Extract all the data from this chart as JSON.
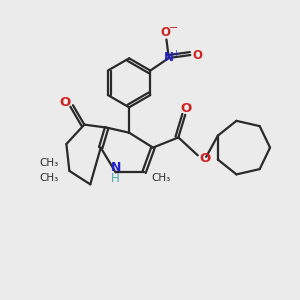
{
  "bg_color": "#ebebeb",
  "bond_color": "#2a2a2a",
  "n_color": "#2222cc",
  "o_color": "#cc2222",
  "nh_color": "#44aaaa",
  "figsize": [
    3.0,
    3.0
  ],
  "dpi": 100,
  "xlim": [
    0,
    10
  ],
  "ylim": [
    0,
    10
  ]
}
